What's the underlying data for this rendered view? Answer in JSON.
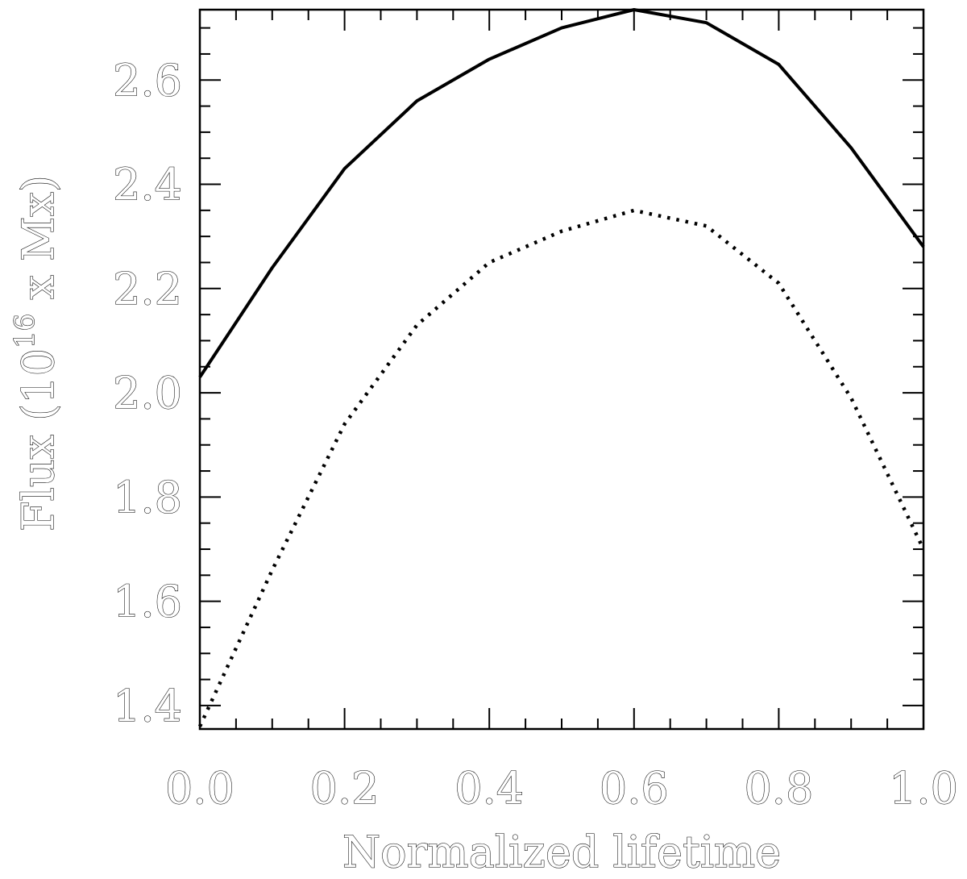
{
  "chart_data": {
    "type": "line",
    "xlabel": "Normalized lifetime",
    "ylabel_parts": {
      "prefix": "Flux (10",
      "superscript": "16",
      "suffix": " x Mx)"
    },
    "xlim": [
      0.0,
      1.0
    ],
    "ylim": [
      1.355,
      2.735
    ],
    "x_ticks": [
      "0.0",
      "0.2",
      "0.4",
      "0.6",
      "0.8",
      "1.0"
    ],
    "y_ticks": [
      "1.4",
      "1.6",
      "1.8",
      "2.0",
      "2.2",
      "2.4",
      "2.6"
    ],
    "x": [
      0.0,
      0.1,
      0.2,
      0.3,
      0.4,
      0.5,
      0.6,
      0.7,
      0.8,
      0.9,
      1.0
    ],
    "series": [
      {
        "style": "solid",
        "values": [
          2.03,
          2.24,
          2.43,
          2.56,
          2.64,
          2.7,
          2.735,
          2.71,
          2.63,
          2.47,
          2.28
        ]
      },
      {
        "style": "dotted",
        "values": [
          1.36,
          1.66,
          1.94,
          2.13,
          2.25,
          2.31,
          2.35,
          2.32,
          2.21,
          1.99,
          1.7
        ]
      }
    ]
  }
}
